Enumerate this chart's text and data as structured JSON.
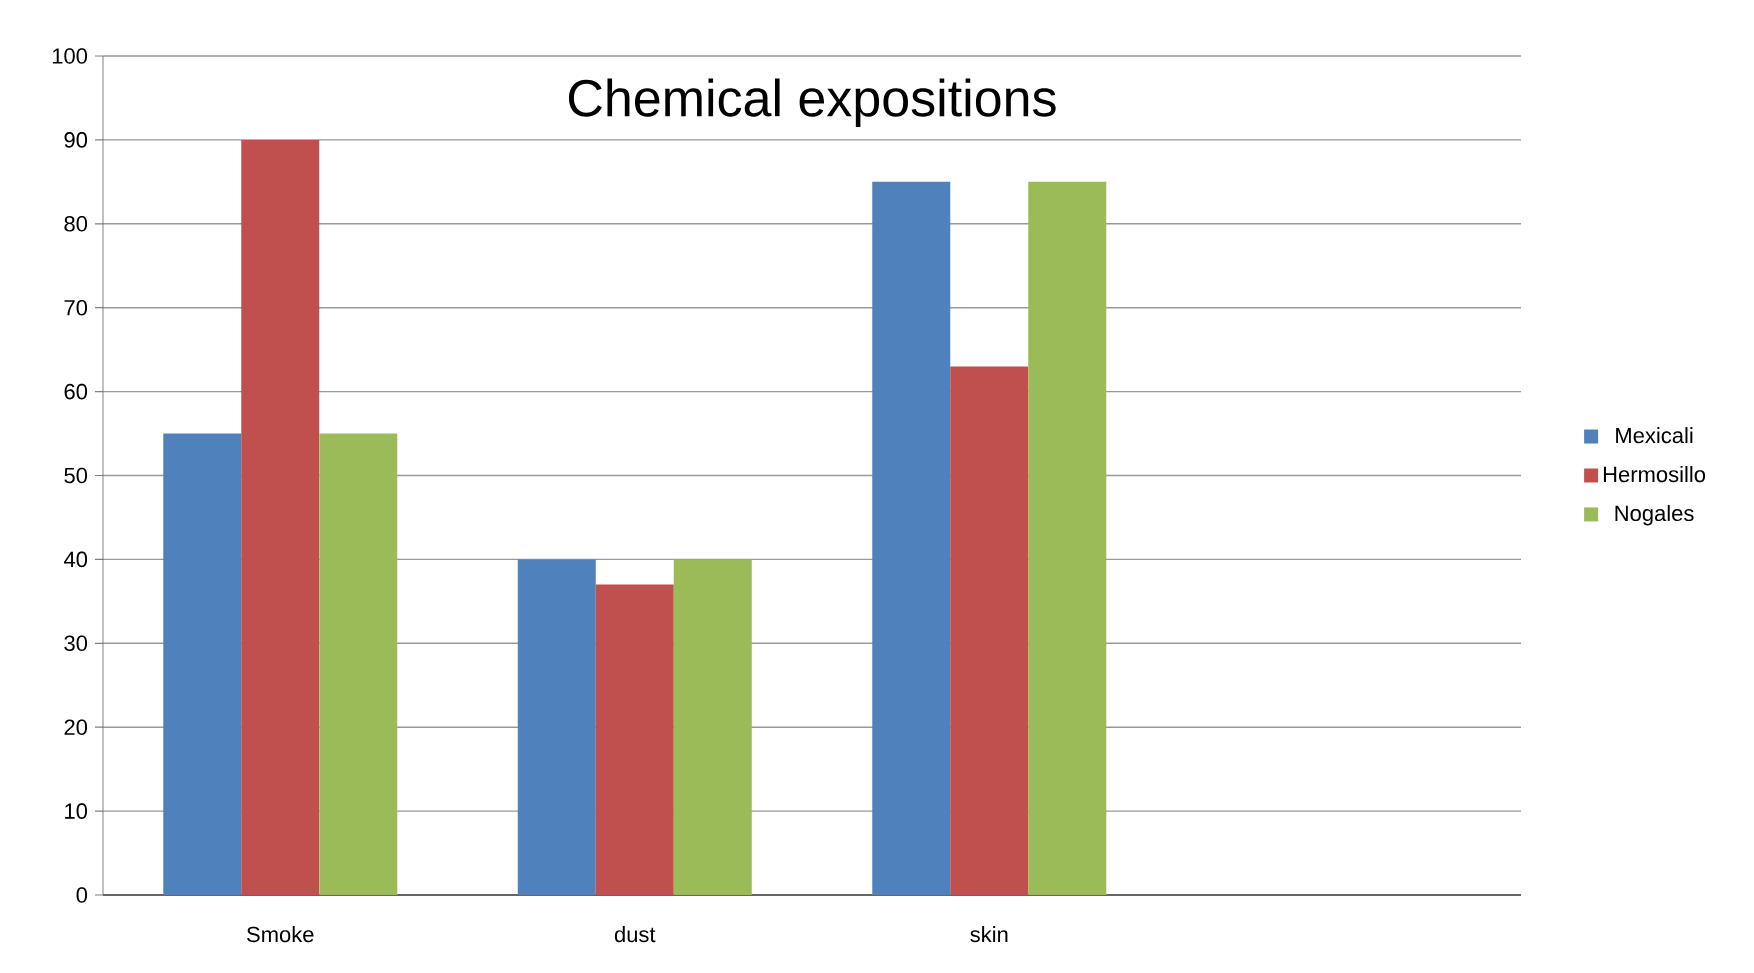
{
  "chart_data": {
    "type": "bar",
    "title": "Chemical  expositions",
    "categories": [
      "Smoke",
      "dust",
      "skin",
      null
    ],
    "series": [
      {
        "name": "Mexicali",
        "color": "#4f81bd",
        "values": [
          55,
          40,
          85,
          null
        ]
      },
      {
        "name": "Hermosillo",
        "color": "#c0504d",
        "values": [
          90,
          37,
          63,
          null
        ]
      },
      {
        "name": "Nogales",
        "color": "#9bbb59",
        "values": [
          55,
          40,
          85,
          null
        ]
      }
    ],
    "ylim": [
      0,
      100
    ],
    "yticks": [
      0,
      10,
      20,
      30,
      40,
      50,
      60,
      70,
      80,
      90,
      100
    ],
    "grid": "y",
    "legend": "right"
  }
}
